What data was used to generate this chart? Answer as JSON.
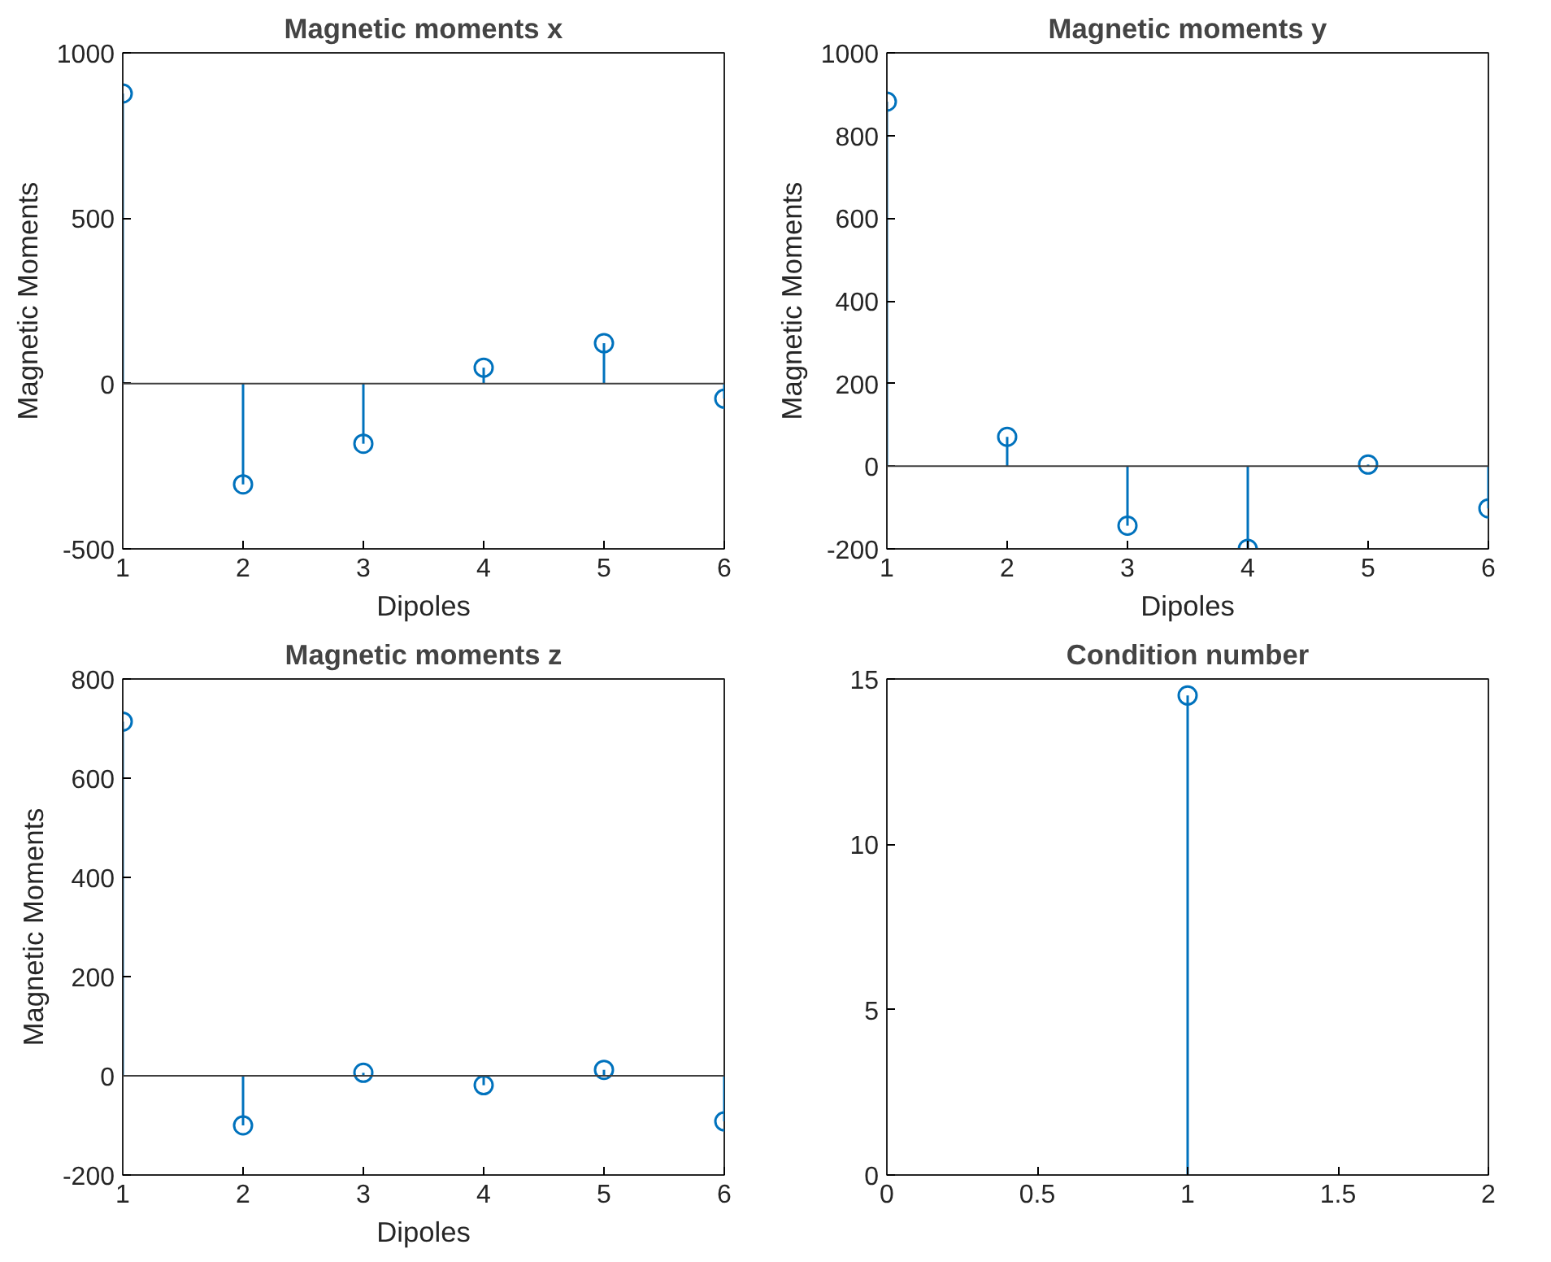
{
  "chart_data": [
    {
      "type": "lollipop",
      "title": "Magnetic moments x",
      "xlabel": "Dipoles",
      "ylabel": "Magnetic Moments",
      "x": [
        1,
        2,
        3,
        4,
        5,
        6
      ],
      "values": [
        877,
        -305,
        -182,
        48,
        122,
        -46
      ],
      "color": "#0072bd",
      "xlim": [
        1,
        6
      ],
      "xticks": [
        1,
        2,
        3,
        4,
        5,
        6
      ],
      "ylim": [
        -500,
        1000
      ],
      "yticks": [
        -500,
        0,
        500,
        1000
      ],
      "marker": "circle",
      "ref_lines": [
        {
          "axis": "y",
          "value": 0,
          "color": "#404040"
        }
      ]
    },
    {
      "type": "lollipop",
      "title": "Magnetic moments y",
      "xlabel": "Dipoles",
      "ylabel": "Magnetic Moments",
      "x": [
        1,
        2,
        3,
        4,
        5,
        6
      ],
      "values": [
        882,
        71,
        -144,
        -200,
        4,
        -102
      ],
      "color": "#0072bd",
      "xlim": [
        1,
        6
      ],
      "xticks": [
        1,
        2,
        3,
        4,
        5,
        6
      ],
      "ylim": [
        -200,
        1000
      ],
      "yticks": [
        -200,
        0,
        200,
        400,
        600,
        800,
        1000
      ],
      "marker": "circle",
      "ref_lines": [
        {
          "axis": "y",
          "value": 0,
          "color": "#404040"
        }
      ]
    },
    {
      "type": "lollipop",
      "title": "Magnetic moments z",
      "xlabel": "Dipoles",
      "ylabel": "Magnetic Moments",
      "x": [
        1,
        2,
        3,
        4,
        5,
        6
      ],
      "values": [
        714,
        -100,
        6,
        -19,
        12,
        -92
      ],
      "color": "#0072bd",
      "xlim": [
        1,
        6
      ],
      "xticks": [
        1,
        2,
        3,
        4,
        5,
        6
      ],
      "ylim": [
        -200,
        800
      ],
      "yticks": [
        -200,
        0,
        200,
        400,
        600,
        800
      ],
      "marker": "circle",
      "ref_lines": [
        {
          "axis": "y",
          "value": 0,
          "color": "#404040"
        }
      ]
    },
    {
      "type": "lollipop",
      "title": "Condition number",
      "x": [
        1
      ],
      "values": [
        14.5
      ],
      "color": "#0072bd",
      "xlim": [
        0,
        2
      ],
      "xticks": [
        0,
        0.5,
        1,
        1.5,
        2
      ],
      "ylim": [
        0,
        15
      ],
      "yticks": [
        0,
        5,
        10,
        15
      ],
      "marker": "circle"
    }
  ]
}
